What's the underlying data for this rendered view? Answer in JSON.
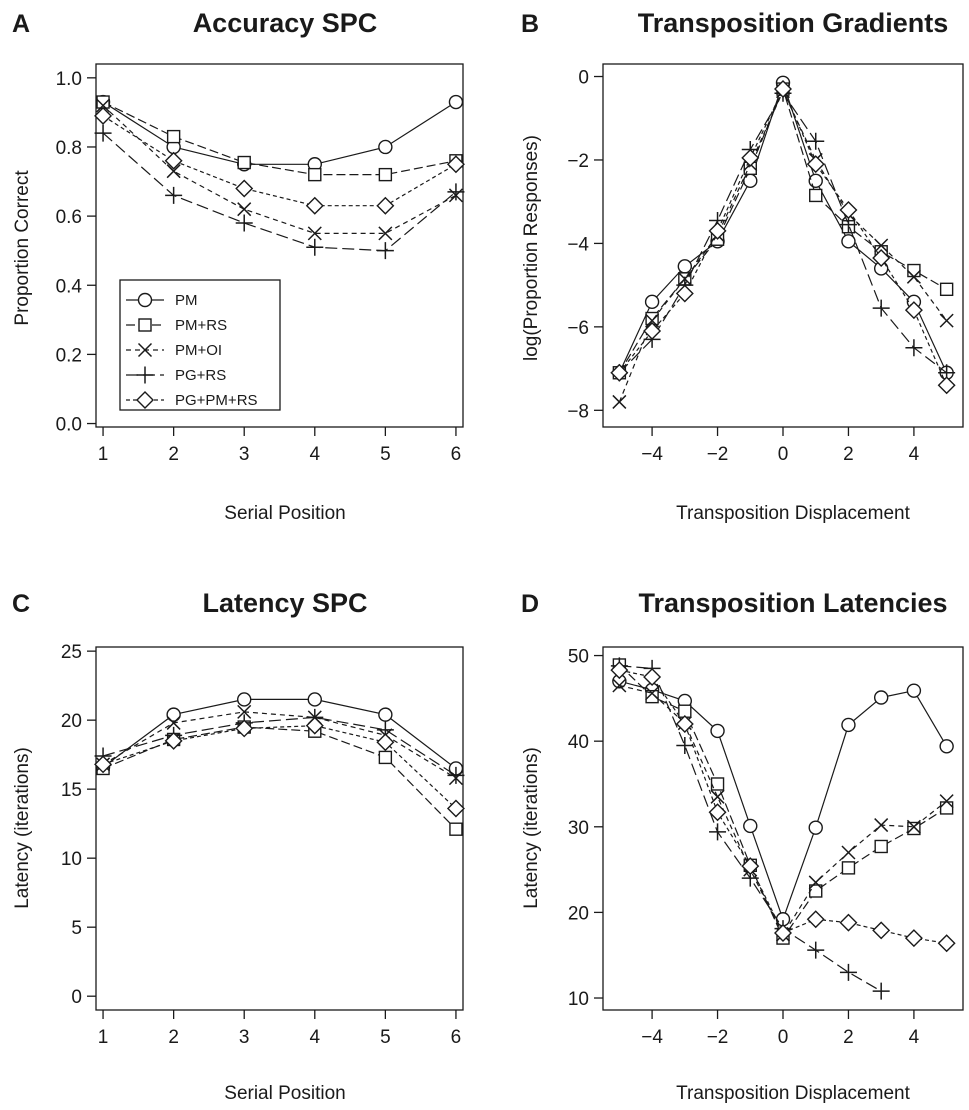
{
  "series_names": [
    "PM",
    "PM+RS",
    "PM+OI",
    "PG+RS",
    "PG+PM+RS"
  ],
  "series_markers": [
    "circle",
    "square",
    "x",
    "plus",
    "diamond"
  ],
  "chart_data": [
    {
      "panel_letter": "A",
      "type": "line",
      "title": "Accuracy SPC",
      "xlabel": "Serial Position",
      "ylabel": "Proportion Correct",
      "xlim": [
        0.9,
        6.1
      ],
      "ylim": [
        -0.01,
        1.04
      ],
      "xticks": [
        1,
        2,
        3,
        4,
        5,
        6
      ],
      "xtick_labels": [
        "1",
        "2",
        "3",
        "4",
        "5",
        "6"
      ],
      "yticks": [
        0.0,
        0.2,
        0.4,
        0.6,
        0.8,
        1.0
      ],
      "ytick_labels": [
        "0.0",
        "0.2",
        "0.4",
        "0.6",
        "0.8",
        "1.0"
      ],
      "legend": "bottom-left",
      "x": [
        1,
        2,
        3,
        4,
        5,
        6
      ],
      "series": [
        {
          "name": "PM",
          "marker": "circle",
          "values": [
            0.93,
            0.8,
            0.75,
            0.75,
            0.8,
            0.93
          ]
        },
        {
          "name": "PM+RS",
          "marker": "square",
          "values": [
            0.93,
            0.83,
            0.755,
            0.72,
            0.72,
            0.76
          ]
        },
        {
          "name": "PM+OI",
          "marker": "x",
          "values": [
            0.92,
            0.73,
            0.62,
            0.55,
            0.55,
            0.66
          ]
        },
        {
          "name": "PG+RS",
          "marker": "plus",
          "values": [
            0.84,
            0.66,
            0.58,
            0.51,
            0.5,
            0.67
          ]
        },
        {
          "name": "PG+PM+RS",
          "marker": "diamond",
          "values": [
            0.89,
            0.76,
            0.68,
            0.63,
            0.63,
            0.75
          ]
        }
      ]
    },
    {
      "panel_letter": "B",
      "type": "line",
      "title": "Transposition Gradients",
      "xlabel": "Transposition Displacement",
      "ylabel": "log(Proportion Responses)",
      "xlim": [
        -5.5,
        5.5
      ],
      "ylim": [
        -8.4,
        0.3
      ],
      "xticks": [
        -4,
        -2,
        0,
        2,
        4
      ],
      "xtick_labels": [
        "−4",
        "−2",
        "0",
        "2",
        "4"
      ],
      "yticks": [
        -8,
        -6,
        -4,
        -2,
        0
      ],
      "ytick_labels": [
        "−8",
        "−6",
        "−4",
        "−2",
        "0"
      ],
      "legend": "none",
      "x": [
        -5,
        -4,
        -3,
        -2,
        -1,
        0,
        1,
        2,
        3,
        4,
        5
      ],
      "series": [
        {
          "name": "PM",
          "marker": "circle",
          "values": [
            -7.1,
            -5.4,
            -4.55,
            -3.95,
            -2.5,
            -0.15,
            -2.5,
            -3.95,
            -4.6,
            -5.4,
            -7.1
          ]
        },
        {
          "name": "PM+RS",
          "marker": "square",
          "values": [
            -7.1,
            -5.8,
            -4.85,
            -3.9,
            -2.2,
            -0.3,
            -2.85,
            -3.6,
            -4.2,
            -4.65,
            -5.1
          ]
        },
        {
          "name": "PM+OI",
          "marker": "x",
          "values": [
            -7.8,
            -5.85,
            -4.85,
            -3.8,
            -2.1,
            -0.35,
            -2.0,
            -3.3,
            -4.05,
            -4.8,
            -5.85
          ]
        },
        {
          "name": "PG+RS",
          "marker": "plus",
          "values": [
            -7.1,
            -6.3,
            -5.0,
            -3.45,
            -1.75,
            -0.4,
            -1.55,
            -3.55,
            -5.55,
            -6.5,
            -7.1
          ]
        },
        {
          "name": "PG+PM+RS",
          "marker": "diamond",
          "values": [
            -7.1,
            -6.1,
            -5.2,
            -3.7,
            -1.95,
            -0.3,
            -2.1,
            -3.2,
            -4.35,
            -5.6,
            -7.4
          ]
        }
      ]
    },
    {
      "panel_letter": "C",
      "type": "line",
      "title": "Latency SPC",
      "xlabel": "Serial Position",
      "ylabel": "Latency (iterations)",
      "xlim": [
        0.9,
        6.1
      ],
      "ylim": [
        -1,
        25.3
      ],
      "xticks": [
        1,
        2,
        3,
        4,
        5,
        6
      ],
      "xtick_labels": [
        "1",
        "2",
        "3",
        "4",
        "5",
        "6"
      ],
      "yticks": [
        0,
        5,
        10,
        15,
        20,
        25
      ],
      "ytick_labels": [
        "0",
        "5",
        "10",
        "15",
        "20",
        "25"
      ],
      "legend": "none",
      "x": [
        1,
        2,
        3,
        4,
        5,
        6
      ],
      "series": [
        {
          "name": "PM",
          "marker": "circle",
          "values": [
            16.6,
            20.4,
            21.5,
            21.5,
            20.4,
            16.5
          ]
        },
        {
          "name": "PM+RS",
          "marker": "square",
          "values": [
            16.5,
            18.6,
            19.5,
            19.2,
            17.3,
            12.1
          ]
        },
        {
          "name": "PM+OI",
          "marker": "x",
          "values": [
            16.8,
            19.8,
            20.6,
            20.2,
            18.9,
            15.8
          ]
        },
        {
          "name": "PG+RS",
          "marker": "plus",
          "values": [
            17.4,
            18.9,
            19.8,
            20.2,
            19.3,
            16.0
          ]
        },
        {
          "name": "PG+PM+RS",
          "marker": "diamond",
          "values": [
            16.8,
            18.5,
            19.4,
            19.6,
            18.4,
            13.6
          ]
        }
      ]
    },
    {
      "panel_letter": "D",
      "type": "line",
      "title": "Transposition Latencies",
      "xlabel": "Transposition Displacement",
      "ylabel": "Latency (iterations)",
      "xlim": [
        -5.5,
        5.5
      ],
      "ylim": [
        8.6,
        51
      ],
      "xticks": [
        -4,
        -2,
        0,
        2,
        4
      ],
      "xtick_labels": [
        "−4",
        "−2",
        "0",
        "2",
        "4"
      ],
      "yticks": [
        10,
        20,
        30,
        40,
        50
      ],
      "ytick_labels": [
        "10",
        "20",
        "30",
        "40",
        "50"
      ],
      "legend": "none",
      "x": [
        -5,
        -4,
        -3,
        -2,
        -1,
        0,
        1,
        2,
        3,
        4,
        5
      ],
      "series": [
        {
          "name": "PM",
          "marker": "circle",
          "values": [
            47.0,
            46.0,
            44.7,
            41.2,
            30.1,
            19.2,
            29.9,
            41.9,
            45.1,
            45.9,
            39.4
          ]
        },
        {
          "name": "PM+RS",
          "marker": "square",
          "values": [
            48.9,
            45.2,
            43.5,
            35.0,
            25.5,
            17.0,
            22.5,
            25.2,
            27.7,
            29.8,
            32.2
          ]
        },
        {
          "name": "PM+OI",
          "marker": "x",
          "values": [
            46.5,
            45.6,
            42.1,
            33.5,
            25.0,
            17.4,
            23.5,
            27.0,
            30.2,
            30.0,
            33.0
          ]
        },
        {
          "name": "PG+RS",
          "marker": "plus",
          "values": [
            48.8,
            48.5,
            39.5,
            29.4,
            24.0,
            18.1,
            15.6,
            13.0,
            10.8,
            null,
            null
          ]
        },
        {
          "name": "PG+PM+RS",
          "marker": "diamond",
          "values": [
            48.3,
            47.5,
            42.0,
            31.7,
            25.4,
            17.6,
            19.2,
            18.8,
            17.9,
            17.0,
            16.4
          ]
        }
      ]
    }
  ]
}
